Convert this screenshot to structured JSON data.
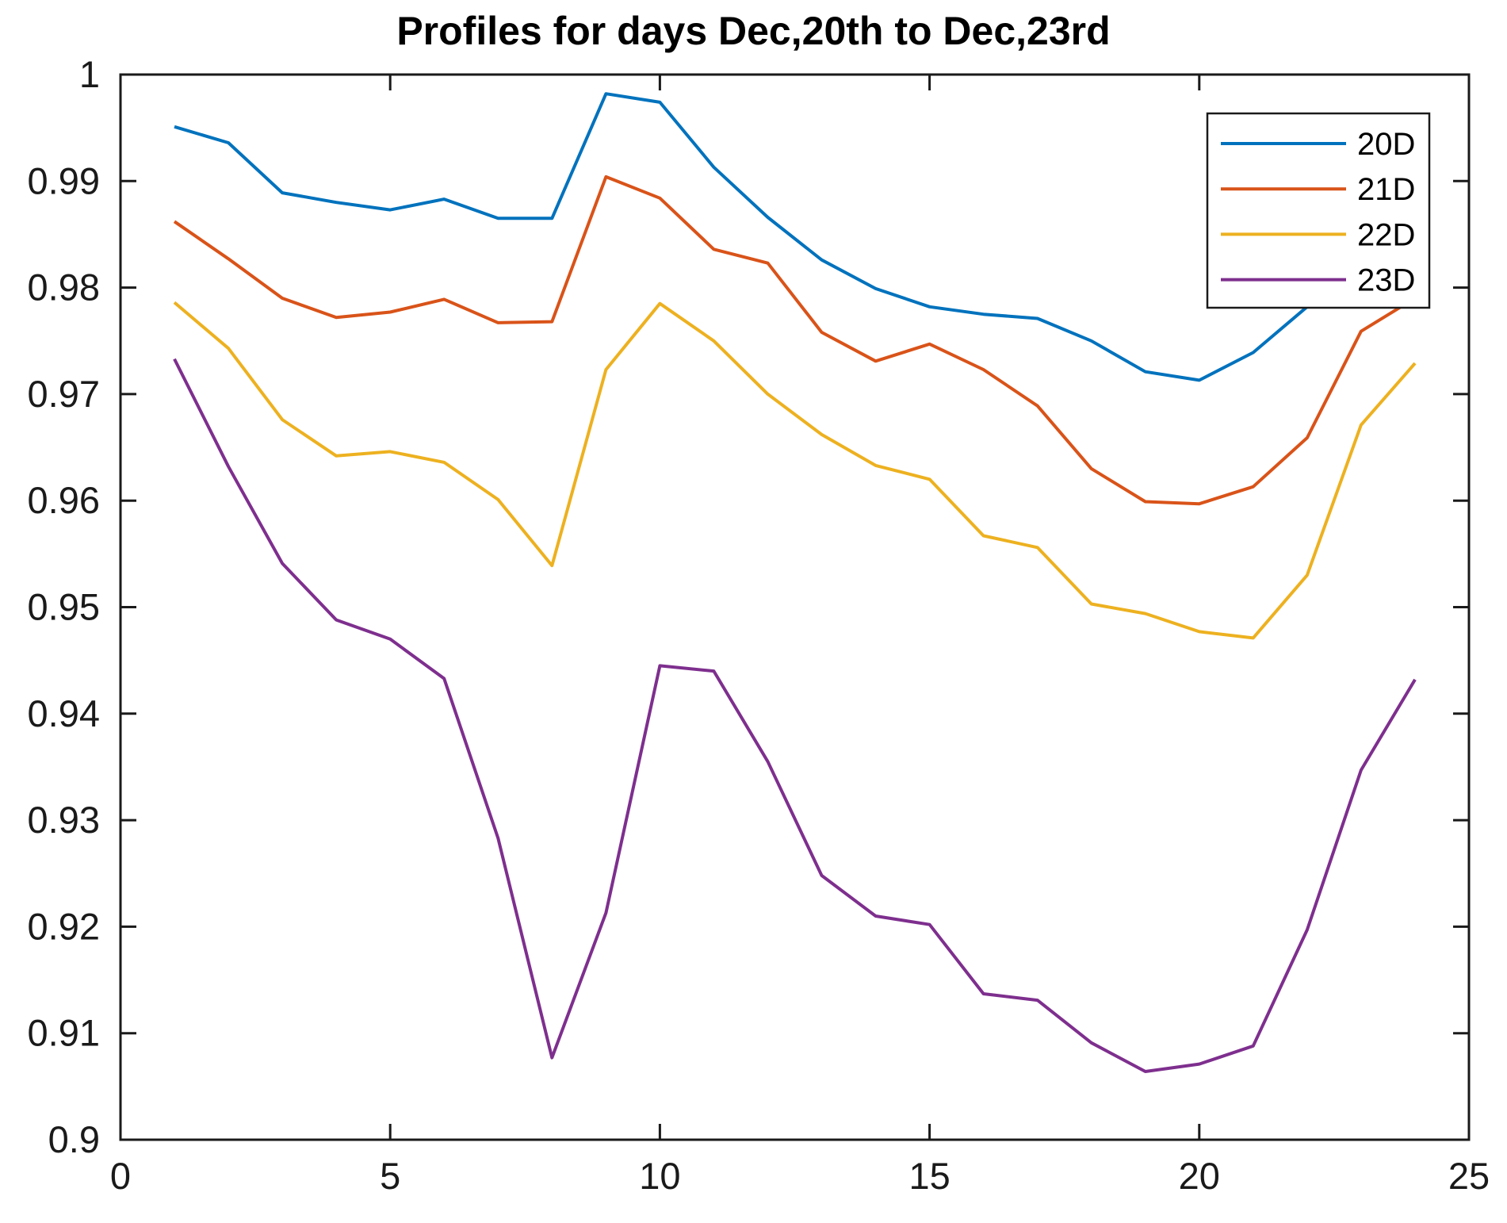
{
  "chart_data": {
    "type": "line",
    "title": "Profiles for days Dec,20th to Dec,23rd",
    "xlabel": "",
    "ylabel": "",
    "xlim": [
      0,
      25
    ],
    "ylim": [
      0.9,
      1.0
    ],
    "grid": false,
    "x_ticks": [
      0,
      5,
      10,
      15,
      20,
      25
    ],
    "x_tick_labels": [
      "0",
      "5",
      "10",
      "15",
      "20",
      "25"
    ],
    "y_ticks": [
      0.9,
      0.91,
      0.92,
      0.93,
      0.94,
      0.95,
      0.96,
      0.97,
      0.98,
      0.99,
      1.0
    ],
    "y_tick_labels": [
      "0.9",
      "0.91",
      "0.92",
      "0.93",
      "0.94",
      "0.95",
      "0.96",
      "0.97",
      "0.98",
      "0.99",
      "1"
    ],
    "x": [
      1,
      2,
      3,
      4,
      5,
      6,
      7,
      8,
      9,
      10,
      11,
      12,
      13,
      14,
      15,
      16,
      17,
      18,
      19,
      20,
      21,
      22,
      23,
      24
    ],
    "series": [
      {
        "name": "20D",
        "color": "#0072BD",
        "values": [
          0.9951,
          0.9936,
          0.9889,
          0.988,
          0.9873,
          0.9883,
          0.9865,
          0.9865,
          0.9982,
          0.9974,
          0.9913,
          0.9866,
          0.9826,
          0.9799,
          0.9782,
          0.9775,
          0.9771,
          0.975,
          0.9721,
          0.9713,
          0.9739,
          0.9782,
          0.983,
          0.9862
        ]
      },
      {
        "name": "21D",
        "color": "#D95319",
        "values": [
          0.9862,
          0.9827,
          0.979,
          0.9772,
          0.9777,
          0.9789,
          0.9767,
          0.9768,
          0.9904,
          0.9884,
          0.9836,
          0.9823,
          0.9758,
          0.9731,
          0.9747,
          0.9723,
          0.9689,
          0.963,
          0.9599,
          0.9597,
          0.9613,
          0.9659,
          0.9759,
          0.979
        ]
      },
      {
        "name": "22D",
        "color": "#EDB120",
        "values": [
          0.9786,
          0.9743,
          0.9676,
          0.9642,
          0.9646,
          0.9636,
          0.9601,
          0.9539,
          0.9723,
          0.9785,
          0.975,
          0.97,
          0.9662,
          0.9633,
          0.962,
          0.9567,
          0.9556,
          0.9503,
          0.9494,
          0.9477,
          0.9471,
          0.953,
          0.9671,
          0.9729
        ]
      },
      {
        "name": "23D",
        "color": "#7E2F8E",
        "values": [
          0.9733,
          0.9632,
          0.9541,
          0.9488,
          0.947,
          0.9433,
          0.9283,
          0.9077,
          0.9213,
          0.9445,
          0.944,
          0.9355,
          0.9248,
          0.921,
          0.9202,
          0.9137,
          0.9131,
          0.9091,
          0.9064,
          0.9071,
          0.9088,
          0.9197,
          0.9347,
          0.9432
        ]
      }
    ],
    "legend": {
      "position": "northeast",
      "entries": [
        "20D",
        "21D",
        "22D",
        "23D"
      ]
    }
  },
  "colors": {
    "axis": "#1a1a1a",
    "background": "#ffffff",
    "legend_border": "#1a1a1a"
  }
}
